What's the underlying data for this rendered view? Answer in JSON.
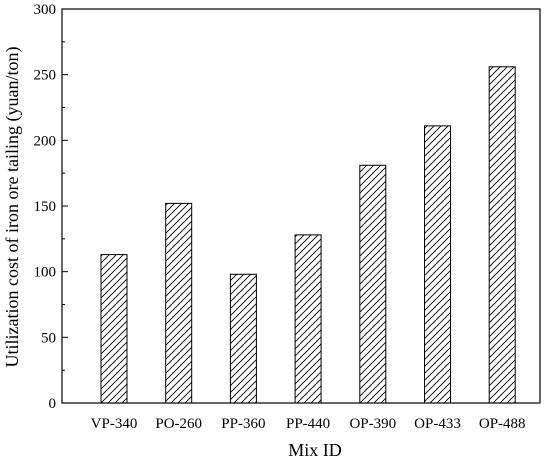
{
  "chart_data": {
    "type": "bar",
    "categories": [
      "VP-340",
      "PO-260",
      "PP-360",
      "PP-440",
      "OP-390",
      "OP-433",
      "OP-488"
    ],
    "values": [
      113,
      152,
      98,
      128,
      181,
      211,
      256
    ],
    "xlabel": "Mix ID",
    "ylabel": "Utilization cost of iron ore tailing (yuan/ton)",
    "ylim": [
      0,
      300
    ],
    "yticks": [
      0,
      50,
      100,
      150,
      200,
      250,
      300
    ],
    "bar_fill": "hatched-diagonal",
    "colors": {
      "bar_stroke": "#000000",
      "hatch": "#000000",
      "axis": "#000000",
      "background": "#ffffff"
    },
    "grid": false,
    "legend": "none"
  }
}
